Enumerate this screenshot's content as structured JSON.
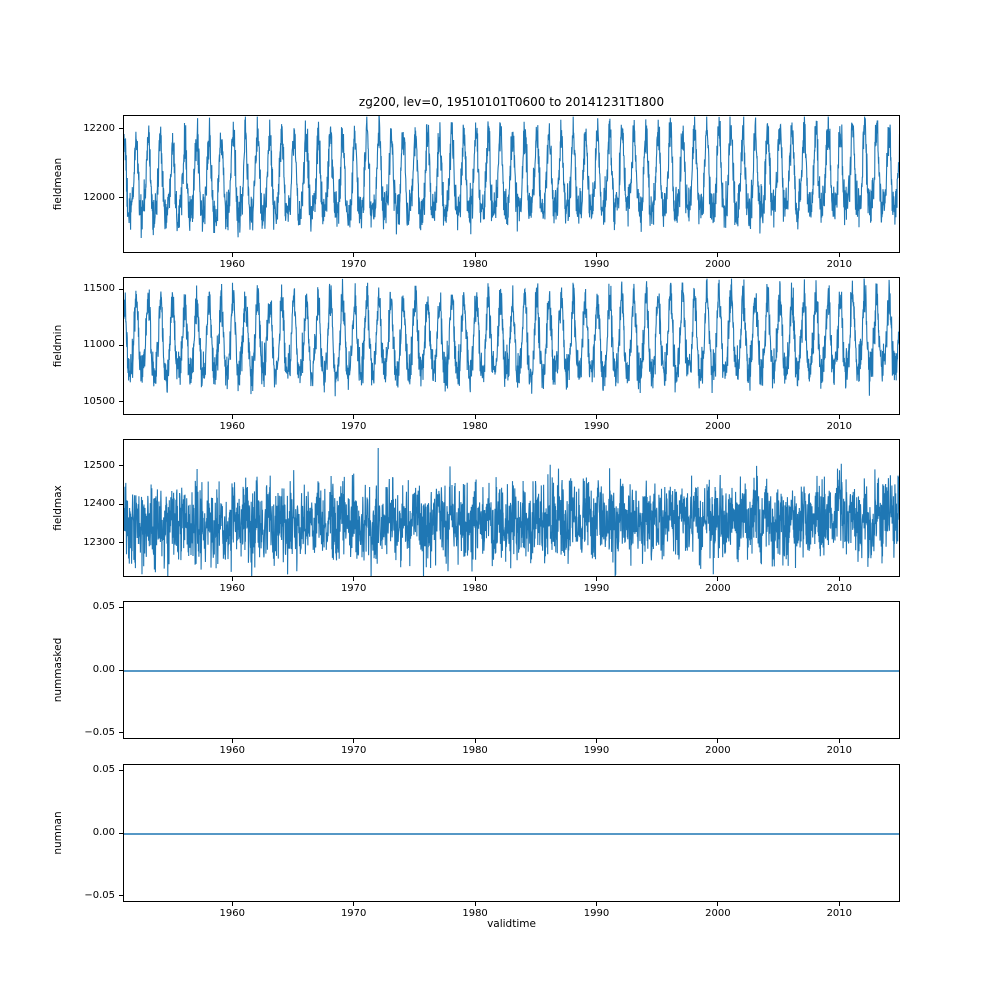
{
  "figure": {
    "title": "zg200, lev=0, 19510101T0600 to 20141231T1800",
    "xlabel": "validtime",
    "line_color": "#1f77b4",
    "background": "#ffffff",
    "text_color": "#000000"
  },
  "chart_data": [
    {
      "type": "line",
      "ylabel": "fieldmean",
      "x_range": [
        1951,
        2015
      ],
      "xticks": [
        1960,
        1970,
        1980,
        1990,
        2000,
        2010
      ],
      "xtick_labels": [
        "1960",
        "1970",
        "1980",
        "1990",
        "2000",
        "2010"
      ],
      "ylim": [
        11840,
        12240
      ],
      "yticks": [
        12200,
        12000
      ],
      "ytick_labels": [
        "12200",
        "12000"
      ],
      "grid": false,
      "legend": false,
      "series": {
        "name": "fieldmean",
        "model": "seasonal",
        "baseline": 12040,
        "seasonal_amplitude": 110,
        "harmonic_amplitude": 28,
        "noise": 60,
        "trend_per_year": 0.4,
        "approx_min": 11860,
        "approx_max": 12230
      }
    },
    {
      "type": "line",
      "ylabel": "fieldmin",
      "x_range": [
        1951,
        2015
      ],
      "xticks": [
        1960,
        1970,
        1980,
        1990,
        2000,
        2010
      ],
      "xtick_labels": [
        "1960",
        "1970",
        "1980",
        "1990",
        "2000",
        "2010"
      ],
      "ylim": [
        10380,
        11610
      ],
      "yticks": [
        11500,
        11000,
        10500
      ],
      "ytick_labels": [
        "11500",
        "11000",
        "10500"
      ],
      "grid": false,
      "legend": false,
      "series": {
        "name": "fieldmin",
        "model": "seasonal",
        "baseline": 11030,
        "seasonal_amplitude": 330,
        "harmonic_amplitude": 60,
        "noise": 180,
        "trend_per_year": 0.5,
        "approx_min": 10460,
        "approx_max": 11580
      }
    },
    {
      "type": "line",
      "ylabel": "fieldmax",
      "x_range": [
        1951,
        2015
      ],
      "xticks": [
        1960,
        1970,
        1980,
        1990,
        2000,
        2010
      ],
      "xtick_labels": [
        "1960",
        "1970",
        "1980",
        "1990",
        "2000",
        "2010"
      ],
      "ylim": [
        12210,
        12570
      ],
      "yticks": [
        12500,
        12400,
        12300
      ],
      "ytick_labels": [
        "12500",
        "12400",
        "12300"
      ],
      "grid": false,
      "legend": false,
      "series": {
        "name": "fieldmax",
        "model": "noisy",
        "baseline": 12345,
        "seasonal_amplitude": 20,
        "harmonic_amplitude": 0,
        "noise": 100,
        "trend_per_year": 0.35,
        "spike_prob": 0.01,
        "spike_size": 130,
        "approx_min": 12240,
        "approx_max": 12560
      }
    },
    {
      "type": "line",
      "ylabel": "nummasked",
      "x_range": [
        1951,
        2015
      ],
      "xticks": [
        1960,
        1970,
        1980,
        1990,
        2000,
        2010
      ],
      "xtick_labels": [
        "1960",
        "1970",
        "1980",
        "1990",
        "2000",
        "2010"
      ],
      "ylim": [
        -0.055,
        0.055
      ],
      "yticks": [
        0.05,
        0.0,
        -0.05
      ],
      "ytick_labels": [
        "0.05",
        "0.00",
        "−0.05"
      ],
      "grid": false,
      "legend": false,
      "series": {
        "name": "nummasked",
        "model": "constant",
        "value": 0.0
      }
    },
    {
      "type": "line",
      "ylabel": "numnan",
      "x_range": [
        1951,
        2015
      ],
      "xticks": [
        1960,
        1970,
        1980,
        1990,
        2000,
        2010
      ],
      "xtick_labels": [
        "1960",
        "1970",
        "1980",
        "1990",
        "2000",
        "2010"
      ],
      "ylim": [
        -0.055,
        0.055
      ],
      "yticks": [
        0.05,
        0.0,
        -0.05
      ],
      "ytick_labels": [
        "0.05",
        "0.00",
        "−0.05"
      ],
      "grid": false,
      "legend": false,
      "series": {
        "name": "numnan",
        "model": "constant",
        "value": 0.0
      }
    }
  ]
}
